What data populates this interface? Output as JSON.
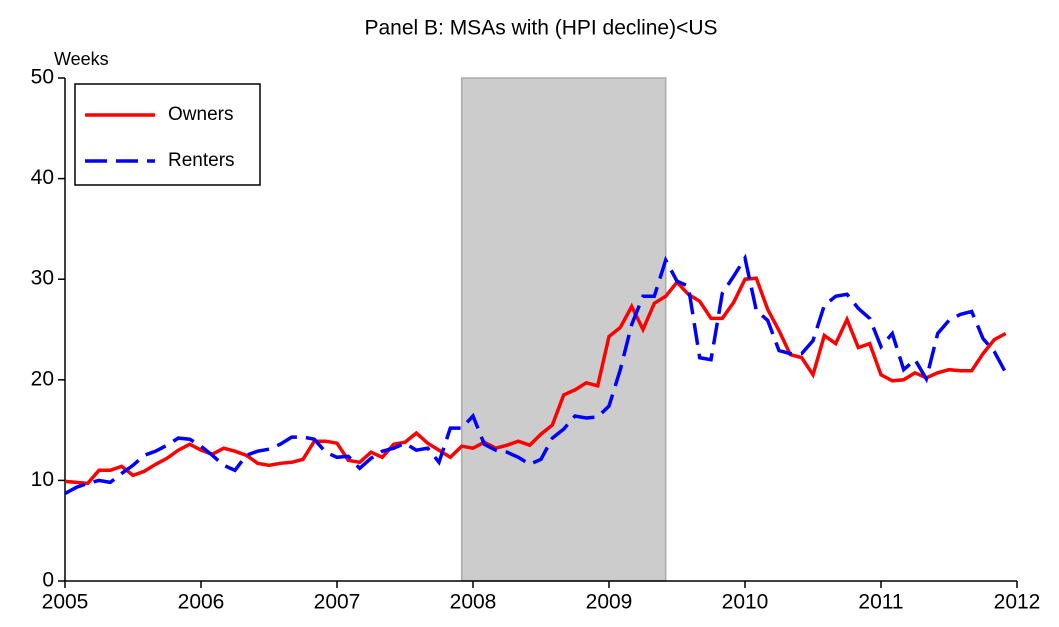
{
  "chart_data": {
    "type": "line",
    "title": "Panel B: MSAs with (HPI decline)<US",
    "y_label": "Weeks",
    "xlim": [
      2005,
      2012
    ],
    "xticks": [
      2005,
      2006,
      2007,
      2008,
      2009,
      2010,
      2011,
      2012
    ],
    "ylim": [
      0,
      50
    ],
    "yticks": [
      0,
      10,
      20,
      30,
      40,
      50
    ],
    "shaded_region": {
      "x": [
        2007.917,
        2009.417
      ],
      "color": "#cccccc"
    },
    "legend": "upper left",
    "x": [
      2005.0,
      2005.083,
      2005.167,
      2005.25,
      2005.333,
      2005.417,
      2005.5,
      2005.583,
      2005.667,
      2005.75,
      2005.833,
      2005.917,
      2006.0,
      2006.083,
      2006.167,
      2006.25,
      2006.333,
      2006.417,
      2006.5,
      2006.583,
      2006.667,
      2006.75,
      2006.833,
      2006.917,
      2007.0,
      2007.083,
      2007.167,
      2007.25,
      2007.333,
      2007.417,
      2007.5,
      2007.583,
      2007.667,
      2007.75,
      2007.833,
      2007.917,
      2008.0,
      2008.083,
      2008.167,
      2008.25,
      2008.333,
      2008.417,
      2008.5,
      2008.583,
      2008.667,
      2008.75,
      2008.833,
      2008.917,
      2009.0,
      2009.083,
      2009.167,
      2009.25,
      2009.333,
      2009.417,
      2009.5,
      2009.583,
      2009.667,
      2009.75,
      2009.833,
      2009.917,
      2010.0,
      2010.083,
      2010.167,
      2010.25,
      2010.333,
      2010.417,
      2010.5,
      2010.583,
      2010.667,
      2010.75,
      2010.833,
      2010.917,
      2011.0,
      2011.083,
      2011.167,
      2011.25,
      2011.333,
      2011.417,
      2011.5,
      2011.583,
      2011.667,
      2011.75,
      2011.833,
      2011.917
    ],
    "series": [
      {
        "name": "Owners",
        "color": "#ff0000",
        "dash": "solid",
        "values": [
          9.9,
          9.8,
          9.7,
          11.0,
          11.0,
          11.4,
          10.5,
          10.9,
          11.6,
          12.2,
          13.0,
          13.6,
          13.0,
          12.6,
          13.2,
          12.9,
          12.5,
          11.7,
          11.5,
          11.7,
          11.8,
          12.1,
          13.9,
          13.9,
          13.7,
          12.0,
          11.8,
          12.8,
          12.3,
          13.6,
          13.8,
          14.7,
          13.7,
          13.0,
          12.3,
          13.4,
          13.2,
          13.8,
          13.2,
          13.5,
          13.9,
          13.5,
          14.6,
          15.5,
          18.5,
          19.0,
          19.7,
          19.4,
          24.3,
          25.2,
          27.3,
          25.0,
          27.6,
          28.3,
          29.7,
          28.5,
          27.8,
          26.1,
          26.1,
          27.7,
          30.0,
          30.1,
          27.0,
          24.9,
          22.5,
          22.2,
          20.5,
          24.4,
          23.6,
          26.0,
          23.2,
          23.6,
          20.5,
          19.9,
          20.0,
          20.7,
          20.2,
          20.7,
          21.0,
          20.9,
          20.9,
          22.6,
          24.0,
          24.6
        ]
      },
      {
        "name": "Renters",
        "color": "#0000ff",
        "dash": "dashed",
        "values": [
          8.7,
          9.3,
          9.7,
          10.0,
          9.8,
          10.7,
          11.5,
          12.5,
          12.9,
          13.5,
          14.2,
          14.1,
          13.4,
          12.5,
          11.5,
          11.0,
          12.5,
          12.9,
          13.1,
          13.6,
          14.3,
          14.3,
          14.1,
          12.8,
          12.3,
          12.4,
          11.2,
          12.2,
          12.9,
          13.2,
          13.7,
          13.0,
          13.2,
          11.8,
          15.2,
          15.2,
          16.4,
          13.6,
          13.0,
          12.8,
          12.3,
          11.6,
          12.1,
          14.2,
          15.1,
          16.4,
          16.2,
          16.3,
          17.4,
          21.0,
          25.5,
          28.3,
          28.3,
          31.9,
          29.8,
          29.3,
          22.2,
          22.0,
          28.6,
          30.3,
          32.1,
          26.9,
          25.9,
          22.9,
          22.6,
          22.6,
          23.9,
          27.4,
          28.3,
          28.5,
          27.1,
          26.1,
          23.3,
          24.6,
          21.0,
          22.0,
          20.1,
          24.6,
          25.9,
          26.5,
          26.8,
          24.1,
          22.8,
          20.7
        ]
      }
    ]
  }
}
